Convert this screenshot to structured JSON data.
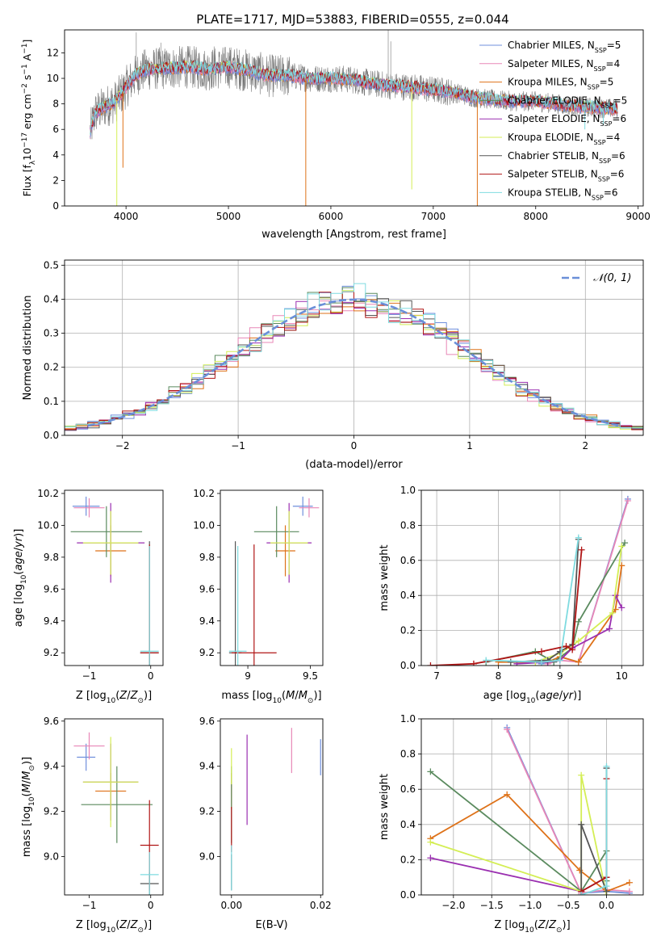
{
  "figure_title": "PLATE=1717, MJD=53883, FIBERID=0555, z=0.044",
  "colors": {
    "Chabrier MILES": "#6f8fdc",
    "Salpeter MILES": "#e887b7",
    "Kroupa MILES": "#de7219",
    "Chabrier ELODIE": "#5a8a5e",
    "Salpeter ELODIE": "#9a2fb0",
    "Kroupa ELODIE": "#d4ee55",
    "Chabrier STELIB": "#555555",
    "Salpeter STELIB": "#b01515",
    "Kroupa STELIB": "#7fdbe0",
    "normal_curve": "#6a8fd8",
    "grid": "#b0b0b0"
  },
  "chart_data": [
    {
      "id": "spectrum",
      "type": "line",
      "title": "PLATE=1717, MJD=53883, FIBERID=0555, z=0.044",
      "xlabel": "wavelength [Angstrom, rest frame]",
      "ylabel": "Flux [f_λ 10^-17 erg cm^-2 s^-1 A^-1]",
      "xlim": [
        3400,
        9050
      ],
      "ylim": [
        0,
        13.8
      ],
      "xticks": [
        4000,
        5000,
        6000,
        7000,
        8000,
        9000
      ],
      "yticks": [
        0,
        2,
        4,
        6,
        8,
        10,
        12
      ],
      "grid": false,
      "legend_position": "top-right",
      "legend": [
        {
          "label": "Chabrier MILES",
          "nssp": "5"
        },
        {
          "label": "Salpeter MILES",
          "nssp": "4"
        },
        {
          "label": "Kroupa MILES",
          "nssp": "5"
        },
        {
          "label": "Chabrier ELODIE",
          "nssp": "5"
        },
        {
          "label": "Salpeter ELODIE",
          "nssp": "6"
        },
        {
          "label": "Kroupa ELODIE",
          "nssp": "4"
        },
        {
          "label": "Chabrier STELIB",
          "nssp": "6"
        },
        {
          "label": "Salpeter STELIB",
          "nssp": "6"
        },
        {
          "label": "Kroupa STELIB",
          "nssp": "6"
        }
      ],
      "data_envelope": {
        "x": [
          3650,
          3700,
          3800,
          3900,
          4000,
          4100,
          4200,
          4400,
          4600,
          4800,
          5000,
          5200,
          5400,
          5600,
          5800,
          6000,
          6200,
          6400,
          6600,
          6800,
          7000,
          7200,
          7400,
          7600,
          7800,
          8000,
          8200,
          8400,
          8600,
          8800
        ],
        "y": [
          5.8,
          7.3,
          7.8,
          8.2,
          9.3,
          10.3,
          10.7,
          10.8,
          10.9,
          10.7,
          10.9,
          10.6,
          10.2,
          10.2,
          10.0,
          10.0,
          9.9,
          9.6,
          9.4,
          9.3,
          9.1,
          8.9,
          8.5,
          8.3,
          8.2,
          8.2,
          8.0,
          7.8,
          7.7,
          7.6
        ]
      },
      "absorption_dips": [
        {
          "x": 3910,
          "y": 0.0
        },
        {
          "x": 3970,
          "y": 3.0
        },
        {
          "x": 5755,
          "y": 0.0
        },
        {
          "x": 6790,
          "y": 1.3
        },
        {
          "x": 7430,
          "y": 0.0
        },
        {
          "x": 8480,
          "y": 6.0
        },
        {
          "x": 8660,
          "y": 6.3
        }
      ],
      "emission_peaks": [
        {
          "x": 4100,
          "y": 13.6
        },
        {
          "x": 4340,
          "y": 12.8
        },
        {
          "x": 4860,
          "y": 12.5
        },
        {
          "x": 5010,
          "y": 12.4
        },
        {
          "x": 6560,
          "y": 13.8
        },
        {
          "x": 6585,
          "y": 12.9
        }
      ]
    },
    {
      "id": "residual_histogram",
      "type": "line",
      "xlabel": "(data-model)/error",
      "ylabel": "Normed distribution",
      "xlim": [
        -2.5,
        2.5
      ],
      "ylim": [
        0,
        0.515
      ],
      "xticks": [
        -2,
        -1,
        0,
        1,
        2
      ],
      "yticks": [
        0.0,
        0.1,
        0.2,
        0.3,
        0.4,
        0.5
      ],
      "grid": true,
      "legend_position": "top-right",
      "legend": [
        {
          "label": "𝒩(0, 1)"
        }
      ],
      "bins": {
        "start": -2.5,
        "width": 0.1,
        "count": 50
      },
      "reference_curve": "standard normal density",
      "series_offsets": [
        0.0,
        0.03,
        -0.03,
        0.02,
        -0.02,
        0.025,
        -0.025,
        0.015,
        -0.015
      ]
    },
    {
      "id": "age_vs_Z",
      "type": "scatter",
      "xlabel": "Z [log10(Z/Z⊙)]",
      "ylabel": "age [log10(age/yr)]",
      "xlim": [
        -1.4,
        0.2
      ],
      "ylim": [
        9.12,
        10.22
      ],
      "xticks": [
        -1,
        0
      ],
      "yticks": [
        9.2,
        9.4,
        9.6,
        9.8,
        10.0,
        10.2
      ],
      "grid": false,
      "points": [
        {
          "series": "Chabrier MILES",
          "x": -1.05,
          "y": 10.12,
          "xerr": 0.22,
          "yerr": 0.06
        },
        {
          "series": "Salpeter MILES",
          "x": -1.0,
          "y": 10.11,
          "xerr": 0.25,
          "yerr": 0.06
        },
        {
          "series": "Kroupa MILES",
          "x": -0.65,
          "y": 9.84,
          "xerr": 0.25,
          "yerr": 0.16
        },
        {
          "series": "Chabrier ELODIE",
          "x": -0.72,
          "y": 9.96,
          "xerr": 0.58,
          "yerr": 0.16
        },
        {
          "series": "Salpeter ELODIE",
          "x": -0.65,
          "y": 9.89,
          "xerr": 0.55,
          "yerr": 0.25
        },
        {
          "series": "Kroupa ELODIE",
          "x": -0.65,
          "y": 9.89,
          "xerr": 0.45,
          "yerr": 0.2
        },
        {
          "series": "Chabrier STELIB",
          "x": -0.02,
          "y": 9.2,
          "xerr": 0.15,
          "yerr": 0.7
        },
        {
          "series": "Salpeter STELIB",
          "x": -0.02,
          "y": 9.2,
          "xerr": 0.15,
          "yerr": 0.68
        },
        {
          "series": "Kroupa STELIB",
          "x": -0.02,
          "y": 9.21,
          "xerr": 0.15,
          "yerr": 0.66
        }
      ]
    },
    {
      "id": "age_vs_mass",
      "type": "scatter",
      "xlabel": "mass [log10(M/M⊙)]",
      "ylabel": "",
      "xlim": [
        8.78,
        9.6
      ],
      "ylim": [
        9.12,
        10.22
      ],
      "xticks": [
        9.0,
        9.5
      ],
      "yticks": [
        9.2,
        9.4,
        9.6,
        9.8,
        10.0,
        10.2
      ],
      "grid": false,
      "points": [
        {
          "series": "Chabrier MILES",
          "x": 9.44,
          "y": 10.12,
          "xerr": 0.08,
          "yerr": 0.06
        },
        {
          "series": "Salpeter MILES",
          "x": 9.49,
          "y": 10.11,
          "xerr": 0.08,
          "yerr": 0.06
        },
        {
          "series": "Kroupa MILES",
          "x": 9.3,
          "y": 9.84,
          "xerr": 0.08,
          "yerr": 0.16
        },
        {
          "series": "Chabrier ELODIE",
          "x": 9.23,
          "y": 9.96,
          "xerr": 0.18,
          "yerr": 0.16
        },
        {
          "series": "Salpeter ELODIE",
          "x": 9.33,
          "y": 9.89,
          "xerr": 0.18,
          "yerr": 0.25
        },
        {
          "series": "Kroupa ELODIE",
          "x": 9.33,
          "y": 9.89,
          "xerr": 0.15,
          "yerr": 0.2
        },
        {
          "series": "Chabrier STELIB",
          "x": 8.9,
          "y": 9.2,
          "xerr": 0.05,
          "yerr": 0.7
        },
        {
          "series": "Salpeter STELIB",
          "x": 9.05,
          "y": 9.2,
          "xerr": 0.18,
          "yerr": 0.68
        },
        {
          "series": "Kroupa STELIB",
          "x": 8.92,
          "y": 9.21,
          "xerr": 0.07,
          "yerr": 0.66
        }
      ]
    },
    {
      "id": "weight_vs_age",
      "type": "line",
      "xlabel": "age [log10(age/yr)]",
      "ylabel": "mass weight",
      "xlim": [
        6.75,
        10.35
      ],
      "ylim": [
        0,
        1.0
      ],
      "xticks": [
        7,
        8,
        9,
        10
      ],
      "yticks": [
        0.0,
        0.2,
        0.4,
        0.6,
        0.8,
        1.0
      ],
      "grid": true,
      "series": [
        {
          "name": "Chabrier MILES",
          "x": [
            8.7,
            8.9,
            9.0,
            9.3,
            10.1
          ],
          "y": [
            0.01,
            0.02,
            0.05,
            0.02,
            0.95
          ]
        },
        {
          "name": "Salpeter MILES",
          "x": [
            8.8,
            9.0,
            9.3,
            10.1
          ],
          "y": [
            0.01,
            0.03,
            0.02,
            0.94
          ]
        },
        {
          "name": "Kroupa MILES",
          "x": [
            8.0,
            8.8,
            9.0,
            9.3,
            9.9,
            10.0
          ],
          "y": [
            0.02,
            0.02,
            0.05,
            0.02,
            0.32,
            0.57
          ]
        },
        {
          "name": "Chabrier ELODIE",
          "x": [
            7.8,
            8.6,
            8.9,
            9.2,
            9.3,
            10.05
          ],
          "y": [
            0.02,
            0.08,
            0.02,
            0.1,
            0.25,
            0.7
          ]
        },
        {
          "name": "Salpeter ELODIE",
          "x": [
            8.3,
            8.8,
            9.0,
            9.2,
            9.8,
            9.9,
            10.0
          ],
          "y": [
            0.01,
            0.02,
            0.03,
            0.1,
            0.21,
            0.4,
            0.33
          ]
        },
        {
          "name": "Kroupa ELODIE",
          "x": [
            8.6,
            9.0,
            9.3,
            9.85,
            10.0
          ],
          "y": [
            0.02,
            0.07,
            0.14,
            0.3,
            0.68
          ]
        },
        {
          "name": "Chabrier STELIB",
          "x": [
            8.2,
            8.8,
            9.0,
            9.2,
            9.3
          ],
          "y": [
            0.02,
            0.03,
            0.08,
            0.12,
            0.72
          ]
        },
        {
          "name": "Salpeter STELIB",
          "x": [
            6.9,
            7.6,
            8.7,
            9.1,
            9.2,
            9.35
          ],
          "y": [
            0.0,
            0.01,
            0.08,
            0.11,
            0.09,
            0.66
          ]
        },
        {
          "name": "Kroupa STELIB",
          "x": [
            7.8,
            8.7,
            9.0,
            9.3
          ],
          "y": [
            0.03,
            0.02,
            0.03,
            0.73
          ]
        }
      ]
    },
    {
      "id": "mass_vs_Z",
      "type": "scatter",
      "xlabel": "Z [log10(Z/Z⊙)]",
      "ylabel": "mass [log10(M/M⊙)]",
      "xlim": [
        -1.4,
        0.2
      ],
      "ylim": [
        8.83,
        9.61
      ],
      "xticks": [
        -1,
        0
      ],
      "yticks": [
        9.0,
        9.2,
        9.4,
        9.6
      ],
      "grid": false,
      "points": [
        {
          "series": "Chabrier MILES",
          "x": -1.05,
          "y": 9.44,
          "xerr": 0.15,
          "yerr": 0.06
        },
        {
          "series": "Salpeter MILES",
          "x": -1.0,
          "y": 9.49,
          "xerr": 0.25,
          "yerr": 0.06
        },
        {
          "series": "Kroupa MILES",
          "x": -0.65,
          "y": 9.29,
          "xerr": 0.25,
          "yerr": 0.08
        },
        {
          "series": "Chabrier ELODIE",
          "x": -0.55,
          "y": 9.23,
          "xerr": 0.58,
          "yerr": 0.17
        },
        {
          "series": "Salpeter ELODIE",
          "x": -0.65,
          "y": 9.33,
          "xerr": 0.45,
          "yerr": 0.17
        },
        {
          "series": "Kroupa ELODIE",
          "x": -0.65,
          "y": 9.33,
          "xerr": 0.45,
          "yerr": 0.2
        },
        {
          "series": "Chabrier STELIB",
          "x": -0.02,
          "y": 8.88,
          "xerr": 0.15,
          "yerr": 0.05
        },
        {
          "series": "Salpeter STELIB",
          "x": -0.02,
          "y": 9.05,
          "xerr": 0.15,
          "yerr": 0.2
        },
        {
          "series": "Kroupa STELIB",
          "x": -0.02,
          "y": 8.92,
          "xerr": 0.15,
          "yerr": 0.1
        }
      ]
    },
    {
      "id": "mass_vs_ebv",
      "type": "scatter",
      "xlabel": "E(B-V)",
      "ylabel": "",
      "xlim": [
        -0.0025,
        0.0205
      ],
      "ylim": [
        8.83,
        9.61
      ],
      "xticks": [
        0.0,
        0.02
      ],
      "xticklabels": [
        "0.00",
        "0.02"
      ],
      "yticks": [
        9.0,
        9.2,
        9.4,
        9.6
      ],
      "grid": false,
      "points": [
        {
          "series": "Chabrier MILES",
          "x": 0.02,
          "y": 9.44,
          "xerr": 0,
          "yerr": 0.08
        },
        {
          "series": "Salpeter MILES",
          "x": 0.0135,
          "y": 9.47,
          "xerr": 0,
          "yerr": 0.1
        },
        {
          "series": "Kroupa MILES",
          "x": 0.0,
          "y": 9.29,
          "xerr": 0,
          "yerr": 0.08
        },
        {
          "series": "Chabrier ELODIE",
          "x": 0.0,
          "y": 9.23,
          "xerr": 0,
          "yerr": 0.17
        },
        {
          "series": "Salpeter ELODIE",
          "x": 0.0035,
          "y": 9.34,
          "xerr": 0,
          "yerr": 0.2
        },
        {
          "series": "Kroupa ELODIE",
          "x": 0.0,
          "y": 9.4,
          "xerr": 0,
          "yerr": 0.08
        },
        {
          "series": "Chabrier STELIB",
          "x": 0.0,
          "y": 8.93,
          "xerr": 0,
          "yerr": 0.08
        },
        {
          "series": "Salpeter STELIB",
          "x": 0.0,
          "y": 9.12,
          "xerr": 0,
          "yerr": 0.1
        },
        {
          "series": "Kroupa STELIB",
          "x": 0.0,
          "y": 8.95,
          "xerr": 0,
          "yerr": 0.1
        }
      ]
    },
    {
      "id": "weight_vs_Z",
      "type": "line",
      "xlabel": "Z [log10(Z/Z⊙)]",
      "ylabel": "mass weight",
      "xlim": [
        -2.42,
        0.48
      ],
      "ylim": [
        0,
        1.0
      ],
      "xticks": [
        -2.0,
        -1.5,
        -1.0,
        -0.5,
        0.0
      ],
      "yticks": [
        0.0,
        0.2,
        0.4,
        0.6,
        0.8,
        1.0
      ],
      "grid": true,
      "series": [
        {
          "name": "Chabrier MILES",
          "x": [
            -1.3,
            -0.33,
            0.0,
            0.3
          ],
          "y": [
            0.95,
            0.01,
            0.02,
            0.01
          ]
        },
        {
          "name": "Salpeter MILES",
          "x": [
            -1.3,
            -0.33,
            0.0,
            0.3
          ],
          "y": [
            0.94,
            0.01,
            0.03,
            0.02
          ]
        },
        {
          "name": "Kroupa MILES",
          "x": [
            -2.3,
            -1.3,
            -0.35,
            0.0,
            0.3
          ],
          "y": [
            0.32,
            0.57,
            0.14,
            0.02,
            0.07
          ]
        },
        {
          "name": "Chabrier ELODIE",
          "x": [
            -2.3,
            -0.33,
            0.0,
            0.0
          ],
          "y": [
            0.7,
            0.02,
            0.25,
            0.08
          ]
        },
        {
          "name": "Salpeter ELODIE",
          "x": [
            -2.3,
            -0.33,
            0.0
          ],
          "y": [
            0.21,
            0.02,
            0.1
          ]
        },
        {
          "name": "Kroupa ELODIE",
          "x": [
            -2.3,
            -0.33,
            -0.33,
            0.0
          ],
          "y": [
            0.3,
            0.02,
            0.68,
            0.0
          ]
        },
        {
          "name": "Chabrier STELIB",
          "x": [
            -0.33,
            -0.33,
            0.0,
            0.0
          ],
          "y": [
            0.0,
            0.4,
            0.02,
            0.72
          ]
        },
        {
          "name": "Salpeter STELIB",
          "x": [
            -0.33,
            0.0,
            0.0
          ],
          "y": [
            0.02,
            0.1,
            0.66
          ]
        },
        {
          "name": "Kroupa STELIB",
          "x": [
            -0.33,
            0.0,
            0.0
          ],
          "y": [
            0.0,
            0.05,
            0.73
          ]
        }
      ]
    }
  ]
}
